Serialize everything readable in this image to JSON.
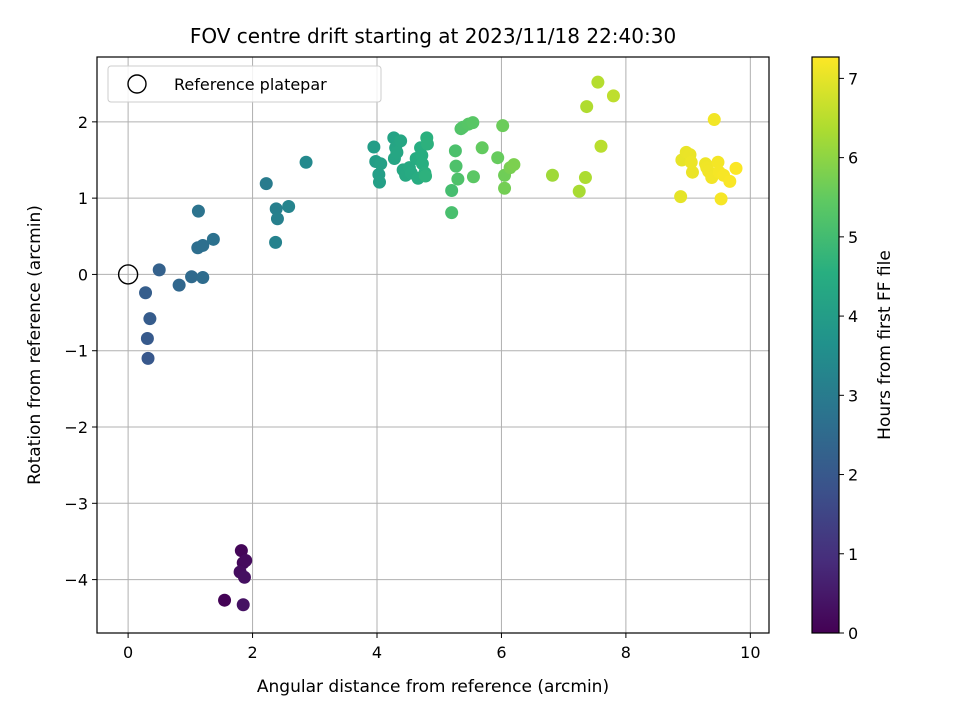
{
  "chart_data": {
    "type": "scatter",
    "title": "FOV centre drift starting at 2023/11/18 22:40:30",
    "xlabel": "Angular distance from reference (arcmin)",
    "ylabel": "Rotation from reference (arcmin)",
    "xlim": [
      -0.5,
      10.3
    ],
    "ylim": [
      -4.7,
      2.85
    ],
    "xticks": [
      0,
      2,
      4,
      6,
      8,
      10
    ],
    "yticks": [
      -4,
      -3,
      -2,
      -1,
      0,
      1,
      2
    ],
    "ytick_labels": [
      "−4",
      "−3",
      "−2",
      "−1",
      "0",
      "1",
      "2"
    ],
    "grid": true,
    "colormap": "viridis",
    "colorbar": {
      "label": "Hours from first FF file",
      "range": [
        0,
        7.27
      ],
      "ticks": [
        0,
        1,
        2,
        3,
        4,
        5,
        6,
        7
      ]
    },
    "legend": {
      "location": "upper-left",
      "entries": [
        {
          "label": "Reference platepar",
          "marker": "open-circle"
        }
      ]
    },
    "reference_point": {
      "x": 0,
      "y": 0
    },
    "points": [
      {
        "x": 1.55,
        "y": -4.27,
        "c": 0.05
      },
      {
        "x": 1.82,
        "y": -3.62,
        "c": 0.1
      },
      {
        "x": 1.85,
        "y": -3.78,
        "c": 0.15
      },
      {
        "x": 1.89,
        "y": -3.75,
        "c": 0.2
      },
      {
        "x": 1.8,
        "y": -3.9,
        "c": 0.25
      },
      {
        "x": 1.87,
        "y": -3.97,
        "c": 0.3
      },
      {
        "x": 1.85,
        "y": -4.33,
        "c": 0.35
      },
      {
        "x": 0.32,
        "y": -1.1,
        "c": 2.0
      },
      {
        "x": 0.31,
        "y": -0.84,
        "c": 2.05
      },
      {
        "x": 0.35,
        "y": -0.58,
        "c": 2.1
      },
      {
        "x": 0.28,
        "y": -0.24,
        "c": 2.15
      },
      {
        "x": 0.5,
        "y": 0.06,
        "c": 2.25
      },
      {
        "x": 0.82,
        "y": -0.14,
        "c": 2.4
      },
      {
        "x": 1.02,
        "y": -0.03,
        "c": 2.5
      },
      {
        "x": 1.2,
        "y": -0.04,
        "c": 2.55
      },
      {
        "x": 1.12,
        "y": 0.35,
        "c": 2.6
      },
      {
        "x": 1.2,
        "y": 0.38,
        "c": 2.65
      },
      {
        "x": 1.37,
        "y": 0.46,
        "c": 2.7
      },
      {
        "x": 1.13,
        "y": 0.83,
        "c": 2.75
      },
      {
        "x": 2.22,
        "y": 1.19,
        "c": 3.0
      },
      {
        "x": 2.38,
        "y": 0.86,
        "c": 3.1
      },
      {
        "x": 2.4,
        "y": 0.73,
        "c": 3.15
      },
      {
        "x": 2.37,
        "y": 0.42,
        "c": 3.2
      },
      {
        "x": 2.58,
        "y": 0.89,
        "c": 3.25
      },
      {
        "x": 2.86,
        "y": 1.47,
        "c": 3.4
      },
      {
        "x": 3.95,
        "y": 1.67,
        "c": 4.0
      },
      {
        "x": 3.98,
        "y": 1.48,
        "c": 4.02
      },
      {
        "x": 4.03,
        "y": 1.31,
        "c": 4.05
      },
      {
        "x": 4.04,
        "y": 1.21,
        "c": 4.08
      },
      {
        "x": 4.06,
        "y": 1.45,
        "c": 4.1
      },
      {
        "x": 4.27,
        "y": 1.79,
        "c": 4.2
      },
      {
        "x": 4.3,
        "y": 1.66,
        "c": 4.22
      },
      {
        "x": 4.28,
        "y": 1.52,
        "c": 4.25
      },
      {
        "x": 4.32,
        "y": 1.6,
        "c": 4.28
      },
      {
        "x": 4.38,
        "y": 1.75,
        "c": 4.3
      },
      {
        "x": 4.42,
        "y": 1.37,
        "c": 4.33
      },
      {
        "x": 4.46,
        "y": 1.3,
        "c": 4.36
      },
      {
        "x": 4.52,
        "y": 1.4,
        "c": 4.39
      },
      {
        "x": 4.55,
        "y": 1.33,
        "c": 4.42
      },
      {
        "x": 4.63,
        "y": 1.52,
        "c": 4.45
      },
      {
        "x": 4.66,
        "y": 1.26,
        "c": 4.48
      },
      {
        "x": 4.7,
        "y": 1.66,
        "c": 4.5
      },
      {
        "x": 4.72,
        "y": 1.56,
        "c": 4.52
      },
      {
        "x": 4.73,
        "y": 1.45,
        "c": 4.55
      },
      {
        "x": 4.77,
        "y": 1.33,
        "c": 4.58
      },
      {
        "x": 4.8,
        "y": 1.79,
        "c": 4.6
      },
      {
        "x": 4.81,
        "y": 1.71,
        "c": 4.62
      },
      {
        "x": 4.78,
        "y": 1.29,
        "c": 4.64
      },
      {
        "x": 5.2,
        "y": 1.1,
        "c": 5.05
      },
      {
        "x": 5.2,
        "y": 0.81,
        "c": 5.1
      },
      {
        "x": 5.26,
        "y": 1.62,
        "c": 5.15
      },
      {
        "x": 5.27,
        "y": 1.42,
        "c": 5.18
      },
      {
        "x": 5.3,
        "y": 1.25,
        "c": 5.2
      },
      {
        "x": 5.35,
        "y": 1.91,
        "c": 5.25
      },
      {
        "x": 5.38,
        "y": 1.93,
        "c": 5.28
      },
      {
        "x": 5.47,
        "y": 1.97,
        "c": 5.32
      },
      {
        "x": 5.54,
        "y": 1.99,
        "c": 5.35
      },
      {
        "x": 5.55,
        "y": 1.28,
        "c": 5.4
      },
      {
        "x": 5.69,
        "y": 1.66,
        "c": 5.5
      },
      {
        "x": 5.94,
        "y": 1.53,
        "c": 5.55
      },
      {
        "x": 6.02,
        "y": 1.95,
        "c": 5.6
      },
      {
        "x": 6.05,
        "y": 1.3,
        "c": 5.65
      },
      {
        "x": 6.05,
        "y": 1.13,
        "c": 5.7
      },
      {
        "x": 6.14,
        "y": 1.4,
        "c": 5.75
      },
      {
        "x": 6.2,
        "y": 1.44,
        "c": 5.8
      },
      {
        "x": 6.82,
        "y": 1.3,
        "c": 6.2
      },
      {
        "x": 7.25,
        "y": 1.09,
        "c": 6.3
      },
      {
        "x": 7.35,
        "y": 1.27,
        "c": 6.35
      },
      {
        "x": 7.37,
        "y": 2.2,
        "c": 6.4
      },
      {
        "x": 7.55,
        "y": 2.52,
        "c": 6.45
      },
      {
        "x": 7.6,
        "y": 1.68,
        "c": 6.5
      },
      {
        "x": 7.8,
        "y": 2.34,
        "c": 6.55
      },
      {
        "x": 8.88,
        "y": 1.02,
        "c": 7.0
      },
      {
        "x": 8.9,
        "y": 1.5,
        "c": 7.02
      },
      {
        "x": 8.97,
        "y": 1.6,
        "c": 7.04
      },
      {
        "x": 9.03,
        "y": 1.57,
        "c": 7.05
      },
      {
        "x": 9.07,
        "y": 1.34,
        "c": 7.06
      },
      {
        "x": 9.05,
        "y": 1.47,
        "c": 7.08
      },
      {
        "x": 9.28,
        "y": 1.45,
        "c": 7.1
      },
      {
        "x": 9.3,
        "y": 1.4,
        "c": 7.12
      },
      {
        "x": 9.33,
        "y": 1.35,
        "c": 7.13
      },
      {
        "x": 9.38,
        "y": 1.27,
        "c": 7.14
      },
      {
        "x": 9.42,
        "y": 2.03,
        "c": 7.15
      },
      {
        "x": 9.48,
        "y": 1.47,
        "c": 7.17
      },
      {
        "x": 9.5,
        "y": 1.34,
        "c": 7.18
      },
      {
        "x": 9.53,
        "y": 0.99,
        "c": 7.19
      },
      {
        "x": 9.57,
        "y": 1.3,
        "c": 7.2
      },
      {
        "x": 9.67,
        "y": 1.22,
        "c": 7.22
      },
      {
        "x": 9.77,
        "y": 1.39,
        "c": 7.25
      }
    ]
  }
}
